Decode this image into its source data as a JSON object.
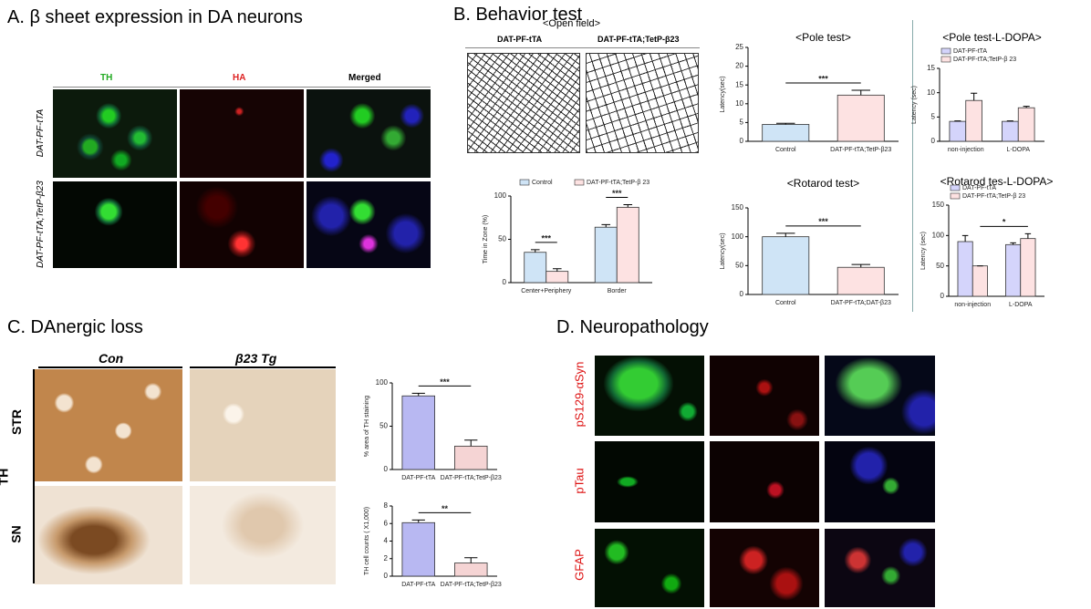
{
  "panels": {
    "A": {
      "title": "A. β sheet expression in DA neurons",
      "columns": [
        "TH",
        "HA",
        "Merged"
      ],
      "rows": [
        "DAT-PF-tTA",
        "DAT-PF-tTA;TetP-β23"
      ]
    },
    "B": {
      "title": "B. Behavior test",
      "open_field": {
        "title": "<Open field>",
        "labels": [
          "DAT-PF-tTA",
          "DAT-PF-tTA;TetP-β23"
        ]
      }
    },
    "C": {
      "title": "C. DAnergic loss",
      "columns": [
        "Con",
        "β23 Tg"
      ],
      "rows": [
        "STR",
        "SN"
      ],
      "stain": "TH"
    },
    "D": {
      "title": "D. Neuropathology",
      "rows": [
        "pS129-αSyn",
        "pTau",
        "GFAP"
      ]
    }
  },
  "chart_data": [
    {
      "type": "bar",
      "y_label": "Time in Zone (%)",
      "categories": [
        "Center+Periphery",
        "Border"
      ],
      "series": [
        {
          "name": "Control",
          "color": "#cfe4f6",
          "values": [
            35,
            64
          ],
          "errors": [
            3,
            3
          ]
        },
        {
          "name": "DAT-PF-tTA;TetP-β 23",
          "color": "#fde2e2",
          "values": [
            13,
            87
          ],
          "errors": [
            3,
            3
          ]
        }
      ],
      "ylim": [
        0,
        100
      ],
      "yticks": [
        0,
        50,
        100
      ],
      "annotations": [
        "***",
        "***"
      ]
    },
    {
      "type": "bar",
      "title": "<Pole test>",
      "y_label": "Latency(sec)",
      "categories": [
        "Control",
        "DAT-PF-tTA;TetP-β23"
      ],
      "color": [
        "#cfe4f6",
        "#fde2e2"
      ],
      "values": [
        4.5,
        12.3
      ],
      "errors": [
        0.3,
        1.3
      ],
      "ylim": [
        0,
        25
      ],
      "yticks": [
        0,
        5,
        10,
        15,
        20,
        25
      ],
      "annotations": [
        "***"
      ]
    },
    {
      "type": "bar",
      "title": "<Rotarod test>",
      "y_label": "Latency(sec)",
      "categories": [
        "Control",
        "DAT-PF-tTA;DAT-β23"
      ],
      "color": [
        "#cfe4f6",
        "#fde2e2"
      ],
      "values": [
        100,
        47
      ],
      "errors": [
        6,
        5
      ],
      "ylim": [
        0,
        150
      ],
      "yticks": [
        0,
        50,
        100,
        150
      ],
      "annotations": [
        "***"
      ]
    },
    {
      "type": "bar",
      "title": "<Pole test-L-DOPA>",
      "y_label": "Latency (sec)",
      "categories": [
        "non-injection",
        "L-DOPA"
      ],
      "series": [
        {
          "name": "DAT-PF-tTA",
          "color": "#d4d4fb",
          "values": [
            4.1,
            4.1
          ],
          "errors": [
            0.1,
            0.1
          ]
        },
        {
          "name": "DAT-PF-tTA;TetP-β 23",
          "color": "#fde2e2",
          "values": [
            8.4,
            6.9
          ],
          "errors": [
            1.5,
            0.3
          ]
        }
      ],
      "ylim": [
        0,
        15
      ],
      "yticks": [
        0,
        5,
        10,
        15
      ]
    },
    {
      "type": "bar",
      "title": "<Rotarod tes-L-DOPA>",
      "y_label": "Latency (sec)",
      "categories": [
        "non-injection",
        "L-DOPA"
      ],
      "series": [
        {
          "name": "DAT-PF-tTA",
          "color": "#d4d4fb",
          "values": [
            90,
            85
          ],
          "errors": [
            10,
            3
          ]
        },
        {
          "name": "DAT-PF-tTA;TetP-β 23",
          "color": "#fde2e2",
          "values": [
            50,
            95
          ],
          "errors": [
            0,
            8
          ]
        }
      ],
      "ylim": [
        0,
        150
      ],
      "yticks": [
        0,
        50,
        100,
        150
      ],
      "annotations": [
        "*"
      ]
    },
    {
      "type": "bar",
      "y_label": "% area of TH staining",
      "categories": [
        "DAT-PF-tTA",
        "DAT-PF-tTA;TetP-β23"
      ],
      "color": [
        "#b8b8f2",
        "#f5d4d4"
      ],
      "values": [
        85,
        27
      ],
      "errors": [
        3,
        7
      ],
      "ylim": [
        0,
        100
      ],
      "yticks": [
        0,
        50,
        100
      ],
      "annotations": [
        "***"
      ]
    },
    {
      "type": "bar",
      "y_label": "TH cell counts ( X1,000)",
      "categories": [
        "DAT-PF-tTA",
        "DAT-PF-tTA;TetP-β23"
      ],
      "color": [
        "#b8b8f2",
        "#f5d4d4"
      ],
      "values": [
        6.1,
        1.5
      ],
      "errors": [
        0.3,
        0.6
      ],
      "ylim": [
        0,
        8
      ],
      "yticks": [
        0,
        2,
        4,
        6,
        8
      ],
      "annotations": [
        "**"
      ]
    }
  ]
}
